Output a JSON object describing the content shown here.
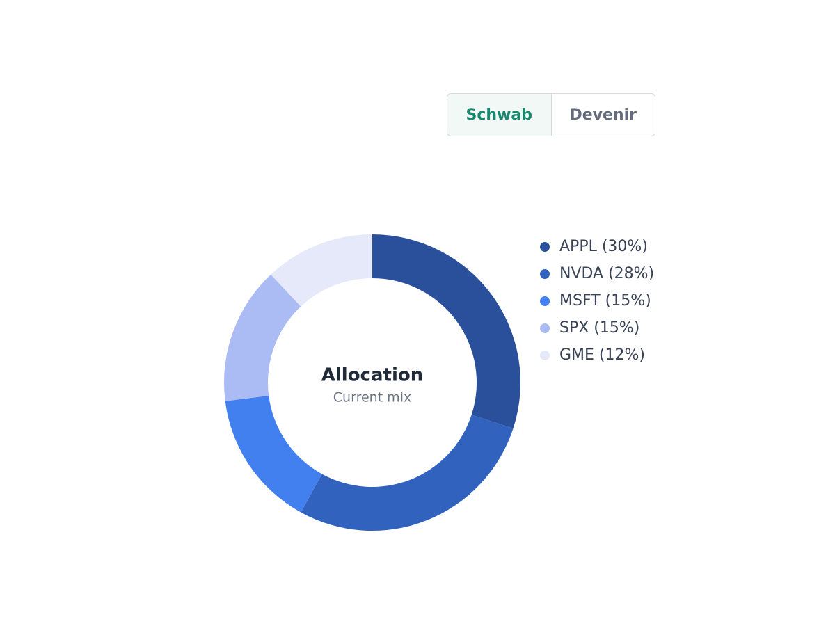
{
  "toggle": {
    "options": [
      "Schwab",
      "Devenir"
    ],
    "active": 0
  },
  "chart_data": {
    "type": "pie",
    "title": "Allocation",
    "subtitle": "Current mix",
    "categories": [
      "APPL (30%)",
      "NVDA (28%)",
      "MSFT (15%)",
      "SPX (15%)",
      "GME (12%)"
    ],
    "values": [
      30,
      28,
      15,
      15,
      12
    ],
    "colors": [
      "#2a509c",
      "#3062be",
      "#4380ef",
      "#abbcf5",
      "#e5e9fa"
    ]
  }
}
